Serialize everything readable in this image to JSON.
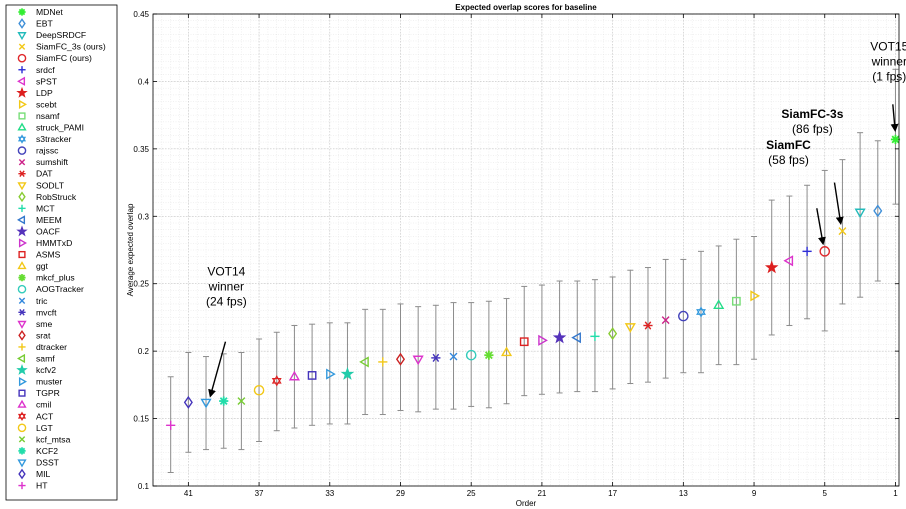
{
  "chart_data": {
    "type": "scatter",
    "title": "Expected overlap scores for baseline",
    "xlabel": "Order",
    "ylabel": "Average expected overlap",
    "xlim": [
      43,
      0.8
    ],
    "ylim": [
      0.1,
      0.45
    ],
    "x_reversed": true,
    "grid": true,
    "legend_position": "left",
    "x_ticks": [
      41,
      37,
      33,
      29,
      25,
      21,
      17,
      13,
      9,
      5,
      1
    ],
    "x_tick_labels": [
      "41",
      "37",
      "33",
      "29",
      "25",
      "21",
      "17",
      "13",
      "9",
      "5",
      "1"
    ],
    "y_ticks": [
      0.1,
      0.15,
      0.2,
      0.25,
      0.3,
      0.35,
      0.4,
      0.45
    ],
    "y_tick_labels": [
      "0.1",
      "0.15",
      "0.2",
      "0.25",
      "0.3",
      "0.35",
      "0.4",
      "0.45"
    ],
    "series": [
      {
        "name": "MDNet",
        "marker": "asterisk8",
        "color": "#33ee33",
        "x": 1,
        "y": 0.357,
        "err": [
          0.309,
          0.409
        ]
      },
      {
        "name": "EBT",
        "marker": "diamond",
        "color": "#3f8fd8",
        "x": 2,
        "y": 0.304,
        "err": [
          0.252,
          0.356
        ]
      },
      {
        "name": "DeepSRDCF",
        "marker": "tri-down",
        "color": "#22bbbb",
        "x": 3,
        "y": 0.303,
        "err": [
          0.24,
          0.362
        ]
      },
      {
        "name": "SiamFC_3s (ours)",
        "marker": "x",
        "color": "#f2c818",
        "x": 4,
        "y": 0.289,
        "err": [
          0.235,
          0.342
        ]
      },
      {
        "name": "SiamFC (ours)",
        "marker": "circle",
        "color": "#e0282c",
        "x": 5,
        "y": 0.274,
        "err": [
          0.215,
          0.334
        ]
      },
      {
        "name": "srdcf",
        "marker": "plus",
        "color": "#2e2ed6",
        "x": 6,
        "y": 0.274,
        "err": [
          0.224,
          0.323
        ]
      },
      {
        "name": "sPST",
        "marker": "tri-left",
        "color": "#dd33cc",
        "x": 7,
        "y": 0.267,
        "err": [
          0.219,
          0.315
        ]
      },
      {
        "name": "LDP",
        "marker": "star5",
        "color": "#dd1f1f",
        "x": 8,
        "y": 0.262,
        "err": [
          0.212,
          0.312
        ]
      },
      {
        "name": "scebt",
        "marker": "tri-right",
        "color": "#f2c818",
        "x": 9,
        "y": 0.241,
        "err": [
          0.194,
          0.285
        ]
      },
      {
        "name": "nsamf",
        "marker": "square",
        "color": "#77dd77",
        "x": 10,
        "y": 0.237,
        "err": [
          0.19,
          0.283
        ]
      },
      {
        "name": "struck_PAMI",
        "marker": "tri-up",
        "color": "#22dd88",
        "x": 11,
        "y": 0.234,
        "err": [
          0.19,
          0.278
        ]
      },
      {
        "name": "s3tracker",
        "marker": "hexagram",
        "color": "#3399dd",
        "x": 12,
        "y": 0.229,
        "err": [
          0.184,
          0.274
        ]
      },
      {
        "name": "rajssc",
        "marker": "circle",
        "color": "#4444bb",
        "x": 13,
        "y": 0.226,
        "err": [
          0.184,
          0.268
        ]
      },
      {
        "name": "sumshift",
        "marker": "x",
        "color": "#cc2288",
        "x": 14,
        "y": 0.223,
        "err": [
          0.18,
          0.268
        ]
      },
      {
        "name": "DAT",
        "marker": "asterisk",
        "color": "#dd2222",
        "x": 15,
        "y": 0.219,
        "err": [
          0.177,
          0.262
        ]
      },
      {
        "name": "SODLT",
        "marker": "tri-down",
        "color": "#f2c818",
        "x": 16,
        "y": 0.218,
        "err": [
          0.176,
          0.26
        ]
      },
      {
        "name": "RobStruck",
        "marker": "diamond",
        "color": "#88cc33",
        "x": 17,
        "y": 0.213,
        "err": [
          0.172,
          0.255
        ]
      },
      {
        "name": "MCT",
        "marker": "plus",
        "color": "#22ddaa",
        "x": 18,
        "y": 0.211,
        "err": [
          0.17,
          0.253
        ]
      },
      {
        "name": "MEEM",
        "marker": "tri-left",
        "color": "#3377cc",
        "x": 19,
        "y": 0.21,
        "err": [
          0.17,
          0.252
        ]
      },
      {
        "name": "OACF",
        "marker": "star5",
        "color": "#5533bb",
        "x": 20,
        "y": 0.21,
        "err": [
          0.169,
          0.252
        ]
      },
      {
        "name": "HMMTxD",
        "marker": "tri-right",
        "color": "#cc33cc",
        "x": 21,
        "y": 0.208,
        "err": [
          0.168,
          0.249
        ]
      },
      {
        "name": "ASMS",
        "marker": "square",
        "color": "#dd2222",
        "x": 22,
        "y": 0.207,
        "err": [
          0.167,
          0.248
        ]
      },
      {
        "name": "ggt",
        "marker": "tri-up",
        "color": "#f2c818",
        "x": 23,
        "y": 0.199,
        "err": [
          0.161,
          0.239
        ]
      },
      {
        "name": "mkcf_plus",
        "marker": "asterisk8",
        "color": "#66dd33",
        "x": 24,
        "y": 0.197,
        "err": [
          0.158,
          0.237
        ]
      },
      {
        "name": "AOGTracker",
        "marker": "circle",
        "color": "#33ccbb",
        "x": 25,
        "y": 0.197,
        "err": [
          0.159,
          0.236
        ]
      },
      {
        "name": "tric",
        "marker": "x",
        "color": "#3388dd",
        "x": 26,
        "y": 0.196,
        "err": [
          0.157,
          0.236
        ]
      },
      {
        "name": "mvcft",
        "marker": "asterisk",
        "color": "#4433bb",
        "x": 27,
        "y": 0.195,
        "err": [
          0.157,
          0.234
        ]
      },
      {
        "name": "sme",
        "marker": "tri-down",
        "color": "#dd33cc",
        "x": 28,
        "y": 0.194,
        "err": [
          0.155,
          0.233
        ]
      },
      {
        "name": "srat",
        "marker": "diamond",
        "color": "#cc2222",
        "x": 29,
        "y": 0.194,
        "err": [
          0.156,
          0.235
        ]
      },
      {
        "name": "dtracker",
        "marker": "plus",
        "color": "#f2c818",
        "x": 30,
        "y": 0.192,
        "err": [
          0.153,
          0.231
        ]
      },
      {
        "name": "samf",
        "marker": "tri-left",
        "color": "#77cc33",
        "x": 31,
        "y": 0.192,
        "err": [
          0.153,
          0.231
        ]
      },
      {
        "name": "kcfv2",
        "marker": "star5",
        "color": "#22ccaa",
        "x": 32,
        "y": 0.183,
        "err": [
          0.146,
          0.221
        ]
      },
      {
        "name": "muster",
        "marker": "tri-right",
        "color": "#3399dd",
        "x": 33,
        "y": 0.183,
        "err": [
          0.146,
          0.221
        ]
      },
      {
        "name": "TGPR",
        "marker": "square",
        "color": "#4433bb",
        "x": 34,
        "y": 0.182,
        "err": [
          0.145,
          0.22
        ]
      },
      {
        "name": "cmil",
        "marker": "tri-up",
        "color": "#dd33cc",
        "x": 35,
        "y": 0.181,
        "err": [
          0.143,
          0.219
        ]
      },
      {
        "name": "ACT",
        "marker": "hexagram",
        "color": "#dd2222",
        "x": 36,
        "y": 0.178,
        "err": [
          0.141,
          0.214
        ]
      },
      {
        "name": "LGT",
        "marker": "circle",
        "color": "#f2c818",
        "x": 37,
        "y": 0.171,
        "err": [
          0.133,
          0.209
        ]
      },
      {
        "name": "kcf_mtsa",
        "marker": "x",
        "color": "#77cc33",
        "x": 38,
        "y": 0.163,
        "err": [
          0.127,
          0.199
        ]
      },
      {
        "name": "KCF2",
        "marker": "asterisk8",
        "color": "#22ddaa",
        "x": 39,
        "y": 0.163,
        "err": [
          0.128,
          0.198
        ]
      },
      {
        "name": "DSST",
        "marker": "tri-down",
        "color": "#3399dd",
        "x": 40,
        "y": 0.162,
        "err": [
          0.127,
          0.196
        ]
      },
      {
        "name": "MIL",
        "marker": "diamond",
        "color": "#4433bb",
        "x": 41,
        "y": 0.162,
        "err": [
          0.125,
          0.199
        ]
      },
      {
        "name": "HT",
        "marker": "plus",
        "color": "#dd33cc",
        "x": 42,
        "y": 0.145,
        "err": [
          0.11,
          0.181
        ]
      }
    ],
    "annotations": [
      {
        "lines": [
          "VOT15",
          "winner",
          "(1 fps)"
        ],
        "bold": false,
        "text_x": 1.35,
        "text_y": 0.423,
        "arrow_from": [
          1.15,
          0.383
        ],
        "arrow_to": [
          1.02,
          0.364
        ]
      },
      {
        "lines": [
          "SiamFC-3s",
          "(86 fps)"
        ],
        "bold_first": true,
        "text_x": 5.7,
        "text_y": 0.373,
        "arrow_from": [
          4.45,
          0.325
        ],
        "arrow_to": [
          4.1,
          0.295
        ]
      },
      {
        "lines": [
          "SiamFC",
          "(58 fps)"
        ],
        "bold_first": true,
        "text_x": 7.05,
        "text_y": 0.35,
        "arrow_from": [
          5.45,
          0.306
        ],
        "arrow_to": [
          5.1,
          0.28
        ]
      },
      {
        "lines": [
          "VOT14",
          "winner",
          "(24 fps)"
        ],
        "bold": false,
        "text_x": 38.85,
        "text_y": 0.256,
        "arrow_from": [
          38.9,
          0.207
        ],
        "arrow_to": [
          39.75,
          0.167
        ]
      }
    ]
  }
}
